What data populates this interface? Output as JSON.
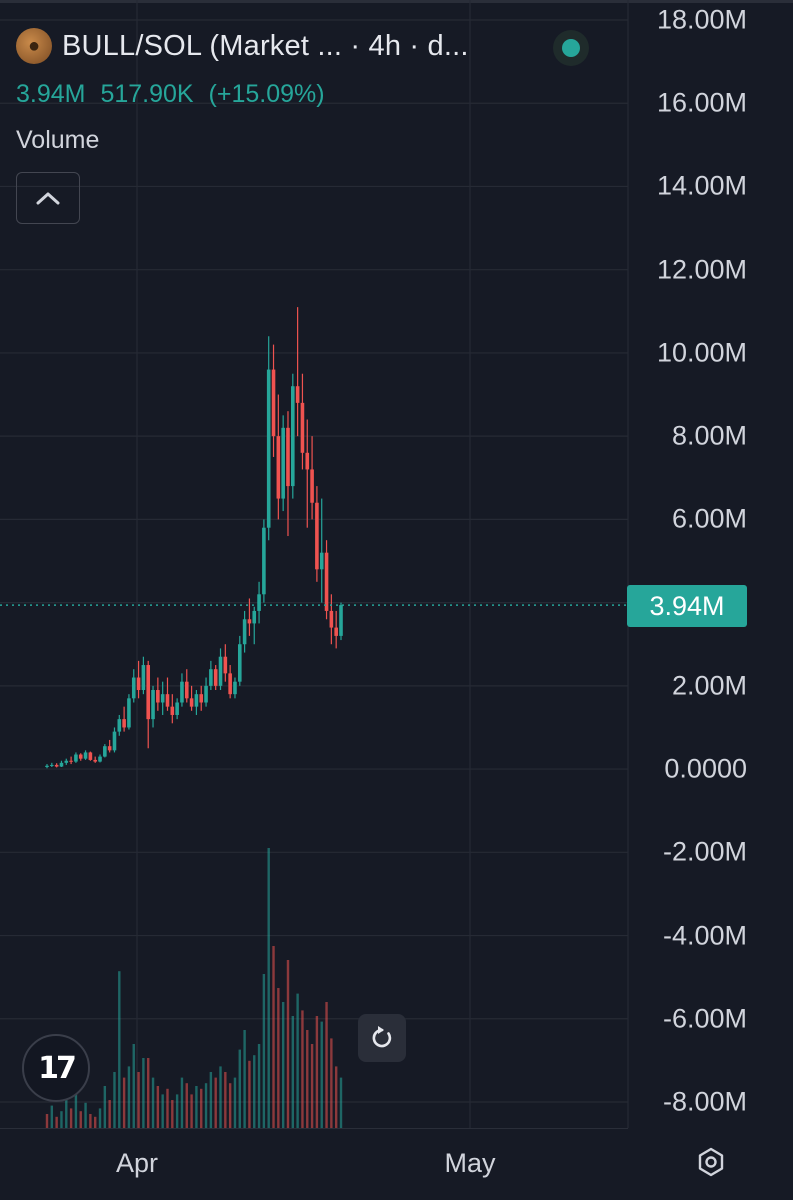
{
  "header": {
    "title": "BULL/SOL (Market ... · 4h · d...",
    "last_value": "3.94M",
    "change_abs": "517.90K",
    "change_pct": "(+15.09%)",
    "volume_label": "Volume",
    "avatar_icon": "bull-avatar-icon",
    "status": "live"
  },
  "colors": {
    "up": "#26a69a",
    "down": "#ef5350",
    "background": "#161a25",
    "grid": "#262a35",
    "text": "#d1d4dc"
  },
  "price_tag": "3.94M",
  "logo_text": "17",
  "chart_data": {
    "type": "candlestick",
    "interval": "4h",
    "title": "BULL/SOL (Market ... · 4h · d...",
    "ylabel": "",
    "xlabel": "",
    "y_ticks": [
      "18.00M",
      "16.00M",
      "14.00M",
      "12.00M",
      "10.00M",
      "8.00M",
      "6.00M",
      "4.00M",
      "2.00M",
      "0.0000",
      "-2.00M",
      "-4.00M",
      "-6.00M",
      "-8.00M"
    ],
    "y_tick_values": [
      18000000,
      16000000,
      14000000,
      12000000,
      10000000,
      8000000,
      6000000,
      4000000,
      2000000,
      0,
      -2000000,
      -4000000,
      -6000000,
      -8000000
    ],
    "x_ticks": [
      "Apr",
      "May"
    ],
    "ylim": [
      -8500000,
      18500000
    ],
    "last_value": 3940000,
    "grid": true,
    "series": [
      {
        "name": "",
        "values": [
          [
            0.05,
            0.12,
            0.02,
            0.08
          ],
          [
            0.08,
            0.15,
            0.05,
            0.1
          ],
          [
            0.1,
            0.14,
            0.04,
            0.06
          ],
          [
            0.06,
            0.2,
            0.05,
            0.15
          ],
          [
            0.15,
            0.25,
            0.1,
            0.2
          ],
          [
            0.2,
            0.3,
            0.12,
            0.18
          ],
          [
            0.18,
            0.4,
            0.15,
            0.35
          ],
          [
            0.35,
            0.38,
            0.2,
            0.25
          ],
          [
            0.25,
            0.45,
            0.22,
            0.4
          ],
          [
            0.4,
            0.42,
            0.2,
            0.22
          ],
          [
            0.22,
            0.3,
            0.15,
            0.18
          ],
          [
            0.18,
            0.35,
            0.16,
            0.3
          ],
          [
            0.3,
            0.6,
            0.28,
            0.55
          ],
          [
            0.55,
            0.7,
            0.4,
            0.45
          ],
          [
            0.45,
            1.0,
            0.4,
            0.9
          ],
          [
            0.9,
            1.3,
            0.8,
            1.2
          ],
          [
            1.2,
            1.5,
            0.9,
            1.0
          ],
          [
            1.0,
            1.8,
            0.95,
            1.7
          ],
          [
            1.7,
            2.4,
            1.6,
            2.2
          ],
          [
            2.2,
            2.6,
            1.7,
            1.9
          ],
          [
            1.9,
            2.7,
            1.8,
            2.5
          ],
          [
            2.5,
            2.6,
            0.5,
            1.2
          ],
          [
            1.2,
            2.0,
            1.0,
            1.9
          ],
          [
            1.9,
            2.2,
            1.4,
            1.6
          ],
          [
            1.6,
            2.1,
            1.3,
            1.8
          ],
          [
            1.8,
            2.2,
            1.4,
            1.5
          ],
          [
            1.5,
            1.8,
            1.1,
            1.3
          ],
          [
            1.3,
            1.7,
            1.2,
            1.6
          ],
          [
            1.6,
            2.3,
            1.5,
            2.1
          ],
          [
            2.1,
            2.4,
            1.6,
            1.7
          ],
          [
            1.7,
            2.0,
            1.4,
            1.5
          ],
          [
            1.5,
            1.9,
            1.3,
            1.8
          ],
          [
            1.8,
            2.0,
            1.4,
            1.6
          ],
          [
            1.6,
            2.2,
            1.5,
            2.0
          ],
          [
            2.0,
            2.6,
            1.9,
            2.4
          ],
          [
            2.4,
            2.5,
            1.9,
            2.0
          ],
          [
            2.0,
            2.9,
            1.9,
            2.7
          ],
          [
            2.7,
            3.0,
            2.1,
            2.3
          ],
          [
            2.3,
            2.5,
            1.7,
            1.8
          ],
          [
            1.8,
            2.2,
            1.7,
            2.1
          ],
          [
            2.1,
            3.2,
            2.0,
            3.0
          ],
          [
            3.0,
            3.8,
            2.8,
            3.6
          ],
          [
            3.6,
            4.1,
            3.2,
            3.5
          ],
          [
            3.5,
            3.9,
            3.0,
            3.8
          ],
          [
            3.8,
            4.5,
            3.5,
            4.2
          ],
          [
            4.2,
            6.0,
            4.0,
            5.8
          ],
          [
            5.8,
            10.4,
            5.5,
            9.6
          ],
          [
            9.6,
            10.2,
            7.5,
            8.0
          ],
          [
            8.0,
            9.0,
            6.0,
            6.5
          ],
          [
            6.5,
            8.5,
            6.2,
            8.2
          ],
          [
            8.2,
            8.6,
            5.6,
            6.8
          ],
          [
            6.8,
            9.5,
            6.5,
            9.2
          ],
          [
            9.2,
            11.1,
            8.0,
            8.8
          ],
          [
            8.8,
            9.5,
            7.2,
            7.6
          ],
          [
            7.6,
            8.4,
            5.8,
            7.2
          ],
          [
            7.2,
            8.0,
            6.0,
            6.4
          ],
          [
            6.4,
            6.8,
            4.5,
            4.8
          ],
          [
            4.8,
            6.5,
            4.0,
            5.2
          ],
          [
            5.2,
            5.5,
            3.6,
            3.8
          ],
          [
            3.8,
            4.2,
            3.0,
            3.4
          ],
          [
            3.4,
            3.8,
            2.9,
            3.2
          ],
          [
            3.2,
            4.0,
            3.1,
            3.94
          ]
        ]
      }
    ],
    "volume_ylim": [
      0,
      1.0
    ],
    "volume": [
      [
        0.05,
        0
      ],
      [
        0.08,
        1
      ],
      [
        0.04,
        0
      ],
      [
        0.06,
        1
      ],
      [
        0.1,
        1
      ],
      [
        0.07,
        0
      ],
      [
        0.12,
        1
      ],
      [
        0.06,
        0
      ],
      [
        0.09,
        1
      ],
      [
        0.05,
        0
      ],
      [
        0.04,
        0
      ],
      [
        0.07,
        1
      ],
      [
        0.15,
        1
      ],
      [
        0.1,
        0
      ],
      [
        0.2,
        1
      ],
      [
        0.56,
        1
      ],
      [
        0.18,
        0
      ],
      [
        0.22,
        1
      ],
      [
        0.3,
        1
      ],
      [
        0.2,
        0
      ],
      [
        0.25,
        1
      ],
      [
        0.25,
        0
      ],
      [
        0.18,
        1
      ],
      [
        0.15,
        0
      ],
      [
        0.12,
        1
      ],
      [
        0.14,
        0
      ],
      [
        0.1,
        0
      ],
      [
        0.12,
        1
      ],
      [
        0.18,
        1
      ],
      [
        0.16,
        0
      ],
      [
        0.12,
        0
      ],
      [
        0.15,
        1
      ],
      [
        0.14,
        0
      ],
      [
        0.16,
        1
      ],
      [
        0.2,
        1
      ],
      [
        0.18,
        0
      ],
      [
        0.22,
        1
      ],
      [
        0.2,
        0
      ],
      [
        0.16,
        0
      ],
      [
        0.18,
        1
      ],
      [
        0.28,
        1
      ],
      [
        0.35,
        1
      ],
      [
        0.24,
        0
      ],
      [
        0.26,
        1
      ],
      [
        0.3,
        1
      ],
      [
        0.55,
        1
      ],
      [
        1.0,
        1
      ],
      [
        0.65,
        0
      ],
      [
        0.5,
        0
      ],
      [
        0.45,
        1
      ],
      [
        0.6,
        0
      ],
      [
        0.4,
        1
      ],
      [
        0.48,
        1
      ],
      [
        0.42,
        0
      ],
      [
        0.35,
        0
      ],
      [
        0.3,
        0
      ],
      [
        0.4,
        0
      ],
      [
        0.38,
        1
      ],
      [
        0.45,
        0
      ],
      [
        0.32,
        0
      ],
      [
        0.22,
        0
      ],
      [
        0.18,
        1
      ]
    ]
  }
}
